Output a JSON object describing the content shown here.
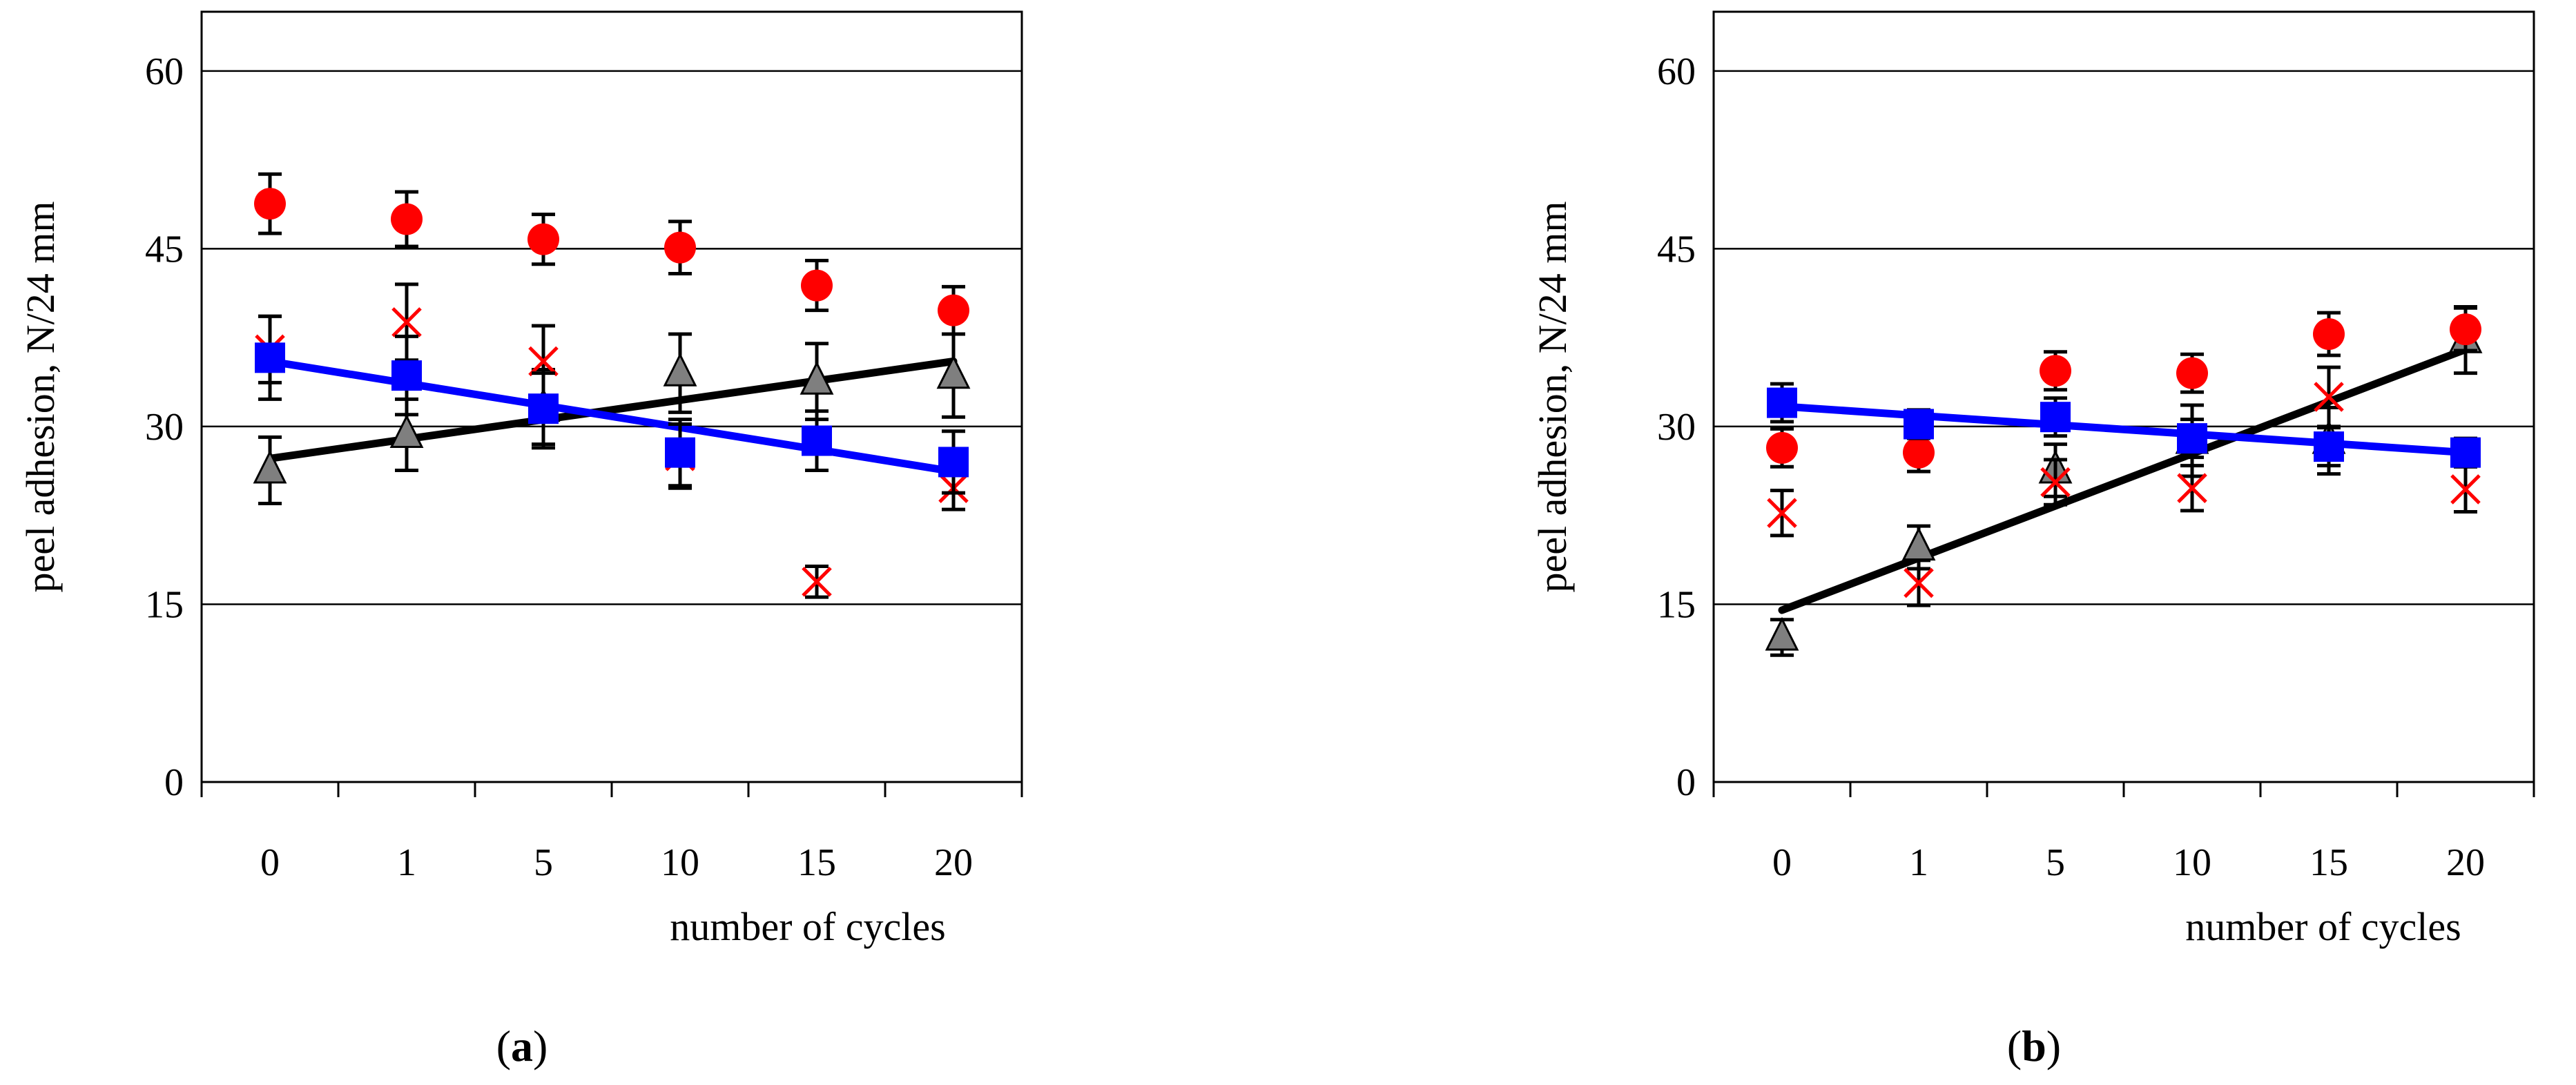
{
  "chart_data": [
    {
      "type": "scatter",
      "panel_label": "a",
      "xlabel": "number of cycles",
      "ylabel": "peel adhesion, N/24 mm",
      "categories": [
        "0",
        "1",
        "5",
        "10",
        "15",
        "20"
      ],
      "ylim": [
        0,
        65
      ],
      "yticks": [
        0,
        15,
        30,
        45,
        60
      ],
      "grid": true,
      "series": [
        {
          "name": "red circles",
          "marker": "circle",
          "color": "#ff0000",
          "values": [
            48.8,
            47.5,
            45.8,
            45.1,
            41.9,
            39.8
          ],
          "errors": [
            2.5,
            2.3,
            2.1,
            2.2,
            2.1,
            2.0
          ]
        },
        {
          "name": "red crosses",
          "marker": "cross",
          "color": "#ff0000",
          "values": [
            36.5,
            38.8,
            35.5,
            27.5,
            16.9,
            24.8
          ],
          "errors": [
            2.8,
            3.2,
            3.0,
            2.7,
            1.3,
            1.8
          ]
        },
        {
          "name": "gray triangles",
          "marker": "triangle",
          "color": "#7f7f7f",
          "values": [
            26.3,
            29.3,
            31.5,
            34.5,
            33.8,
            34.3
          ],
          "errors": [
            2.8,
            3.0,
            3.3,
            3.3,
            3.2,
            3.5
          ]
        },
        {
          "name": "blue squares",
          "marker": "square",
          "color": "#0000ff",
          "values": [
            35.8,
            34.3,
            31.5,
            27.8,
            28.8,
            27.0
          ],
          "errors": [
            3.5,
            3.3,
            3.0,
            2.8,
            2.5,
            2.6
          ]
        }
      ],
      "trendlines": [
        {
          "name": "black trend",
          "color": "#000000",
          "start": 27.3,
          "end": 35.5
        },
        {
          "name": "blue trend",
          "color": "#0000ff",
          "start": 35.5,
          "end": 26.2
        }
      ]
    },
    {
      "type": "scatter",
      "panel_label": "b",
      "xlabel": "number of cycles",
      "ylabel": "peel adhesion, N/24 mm",
      "categories": [
        "0",
        "1",
        "5",
        "10",
        "15",
        "20"
      ],
      "ylim": [
        0,
        65
      ],
      "yticks": [
        0,
        15,
        30,
        45,
        60
      ],
      "grid": true,
      "series": [
        {
          "name": "red circles",
          "marker": "circle",
          "color": "#ff0000",
          "values": [
            28.2,
            27.8,
            34.7,
            34.5,
            37.8,
            38.2
          ],
          "errors": [
            1.6,
            1.6,
            1.6,
            1.6,
            1.8,
            1.8
          ]
        },
        {
          "name": "red crosses",
          "marker": "cross",
          "color": "#ff0000",
          "values": [
            22.7,
            16.8,
            25.3,
            24.8,
            32.5,
            24.7
          ],
          "errors": [
            1.9,
            1.9,
            1.9,
            1.9,
            2.5,
            1.9
          ]
        },
        {
          "name": "gray triangles",
          "marker": "triangle",
          "color": "#7f7f7f",
          "values": [
            12.2,
            19.8,
            26.3,
            28.8,
            28.8,
            37.3
          ],
          "errors": [
            1.5,
            1.8,
            2.2,
            3.0,
            2.8,
            2.8
          ]
        },
        {
          "name": "blue squares",
          "marker": "square",
          "color": "#0000ff",
          "values": [
            32.0,
            30.2,
            30.8,
            29.0,
            28.3,
            27.8
          ],
          "errors": [
            1.6,
            1.2,
            1.6,
            1.6,
            1.6,
            1.2
          ]
        }
      ],
      "trendlines": [
        {
          "name": "black trend",
          "color": "#000000",
          "start": 14.5,
          "end": 36.5
        },
        {
          "name": "blue trend",
          "color": "#0000ff",
          "start": 31.7,
          "end": 27.8
        }
      ]
    }
  ]
}
